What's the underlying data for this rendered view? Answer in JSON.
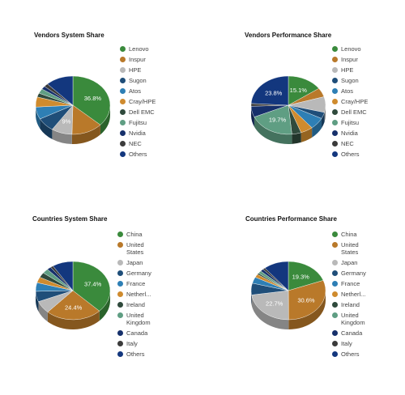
{
  "chart_data": [
    {
      "type": "pie",
      "title": "Vendors System Share",
      "categories": [
        "Lenovo",
        "Inspur",
        "HPE",
        "Sugon",
        "Atos",
        "Cray/HPE",
        "Dell EMC",
        "Fujitsu",
        "Nvidia",
        "NEC",
        "Others"
      ],
      "values": [
        36.8,
        13.6,
        9.0,
        7.8,
        6.8,
        5.6,
        2.2,
        2.6,
        1.8,
        1.8,
        12.0
      ],
      "data_labels": [
        "36.8%",
        "",
        "9%",
        "",
        "",
        "",
        "",
        "",
        "",
        "",
        ""
      ],
      "colors": [
        "#3a8a3c",
        "#b9792a",
        "#b9b9b9",
        "#1f4e79",
        "#2e7fb5",
        "#cf8b2e",
        "#2f4a3c",
        "#5f9e83",
        "#16306b",
        "#3b3b3b",
        "#13377e"
      ],
      "legend_position": "right"
    },
    {
      "type": "pie",
      "title": "Vendors Performance Share",
      "categories": [
        "Lenovo",
        "Inspur",
        "HPE",
        "Sugon",
        "Atos",
        "Cray/HPE",
        "Dell EMC",
        "Fujitsu",
        "Nvidia",
        "NEC",
        "Others"
      ],
      "values": [
        15.1,
        5.0,
        8.6,
        3.5,
        6.5,
        5.3,
        4.0,
        19.7,
        6.0,
        1.5,
        23.8
      ],
      "data_labels": [
        "15.1%",
        "",
        "",
        "",
        "",
        "",
        "",
        "19.7%",
        "",
        "",
        "23.8%"
      ],
      "colors": [
        "#3a8a3c",
        "#b9792a",
        "#b9b9b9",
        "#1f4e79",
        "#2e7fb5",
        "#cf8b2e",
        "#2f4a3c",
        "#5f9e83",
        "#16306b",
        "#3b3b3b",
        "#13377e"
      ],
      "legend_position": "right"
    },
    {
      "type": "pie",
      "title": "Countries System Share",
      "categories": [
        "China",
        "United States",
        "Japan",
        "Germany",
        "France",
        "Netherl...",
        "Ireland",
        "United Kingdom",
        "Canada",
        "Italy",
        "Others"
      ],
      "values": [
        37.4,
        24.4,
        7.0,
        5.8,
        4.8,
        3.2,
        2.8,
        2.6,
        1.8,
        1.2,
        9.0
      ],
      "data_labels": [
        "37.4%",
        "24.4%",
        "",
        "",
        "",
        "",
        "",
        "",
        "",
        "",
        ""
      ],
      "colors": [
        "#3a8a3c",
        "#b9792a",
        "#b9b9b9",
        "#1f4e79",
        "#2e7fb5",
        "#cf8b2e",
        "#2f4a3c",
        "#5f9e83",
        "#16306b",
        "#3b3b3b",
        "#13377e"
      ],
      "legend_position": "right"
    },
    {
      "type": "pie",
      "title": "Countries Performance Share",
      "categories": [
        "China",
        "United States",
        "Japan",
        "Germany",
        "France",
        "Netherl...",
        "Ireland",
        "United Kingdom",
        "Canada",
        "Italy",
        "Others"
      ],
      "values": [
        19.3,
        30.6,
        22.7,
        6.5,
        3.5,
        1.8,
        0.8,
        1.5,
        1.4,
        1.0,
        10.9
      ],
      "data_labels": [
        "19.3%",
        "30.6%",
        "22.7%",
        "",
        "",
        "",
        "",
        "",
        "",
        "",
        ""
      ],
      "colors": [
        "#3a8a3c",
        "#b9792a",
        "#b9b9b9",
        "#1f4e79",
        "#2e7fb5",
        "#cf8b2e",
        "#2f4a3c",
        "#5f9e83",
        "#16306b",
        "#3b3b3b",
        "#13377e"
      ],
      "legend_position": "right"
    }
  ]
}
